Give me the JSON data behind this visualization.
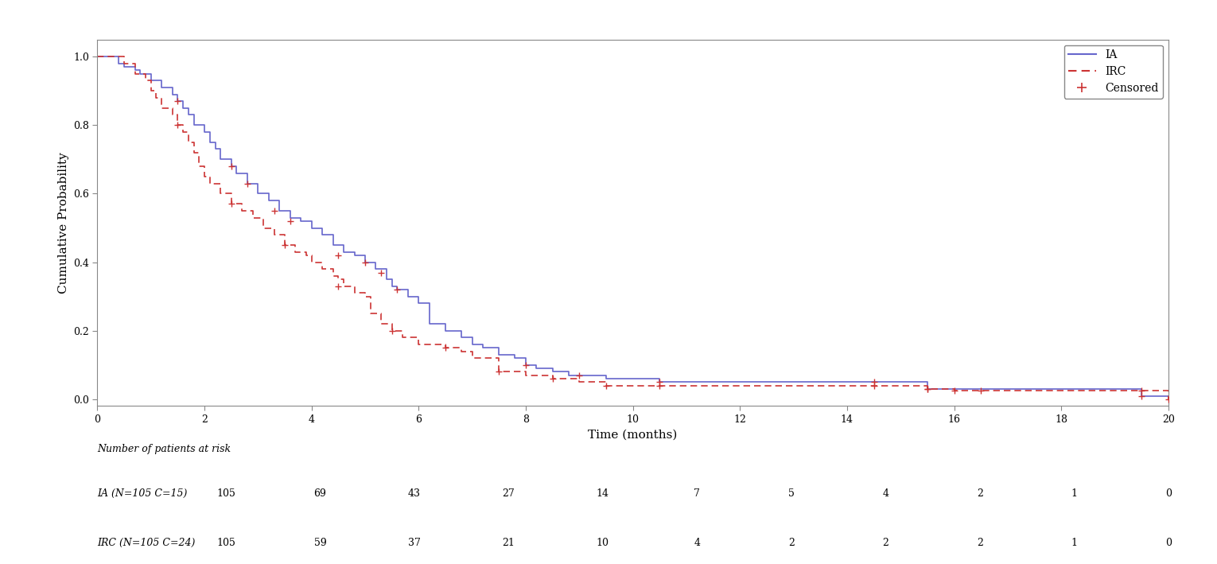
{
  "title": "",
  "xlabel": "Time (months)",
  "ylabel": "Cumulative Probability",
  "xlim": [
    0,
    20
  ],
  "ylim": [
    -0.02,
    1.05
  ],
  "xticks": [
    0,
    2,
    4,
    6,
    8,
    10,
    12,
    14,
    16,
    18,
    20
  ],
  "yticks": [
    0.0,
    0.2,
    0.4,
    0.6,
    0.8,
    1.0
  ],
  "ia_color": "#6666cc",
  "irc_color": "#cc3333",
  "background_color": "#ffffff",
  "risk_table_header": "Number of patients at risk",
  "ia_label": "IA (N=105 C=15)",
  "irc_label": "IRC (N=105 C=24)",
  "risk_times": [
    0,
    2,
    4,
    6,
    8,
    10,
    12,
    14,
    16,
    18,
    20
  ],
  "ia_risk": [
    105,
    69,
    43,
    27,
    14,
    7,
    5,
    4,
    2,
    1,
    0
  ],
  "irc_risk": [
    105,
    59,
    37,
    21,
    10,
    4,
    2,
    2,
    2,
    1,
    0
  ],
  "ia_step_x": [
    0,
    0.3,
    0.4,
    0.5,
    0.7,
    0.8,
    1.0,
    1.2,
    1.4,
    1.5,
    1.6,
    1.7,
    1.8,
    2.0,
    2.1,
    2.2,
    2.3,
    2.5,
    2.6,
    2.8,
    3.0,
    3.2,
    3.4,
    3.6,
    3.8,
    4.0,
    4.2,
    4.4,
    4.6,
    4.8,
    5.0,
    5.2,
    5.4,
    5.5,
    5.6,
    5.8,
    6.0,
    6.2,
    6.5,
    6.8,
    7.0,
    7.2,
    7.5,
    7.8,
    8.0,
    8.2,
    8.5,
    8.8,
    9.0,
    9.5,
    10.0,
    10.5,
    11.0,
    14.5,
    15.5,
    19.5,
    20.0
  ],
  "ia_step_y": [
    1.0,
    1.0,
    0.98,
    0.97,
    0.96,
    0.95,
    0.93,
    0.91,
    0.89,
    0.87,
    0.85,
    0.83,
    0.8,
    0.78,
    0.75,
    0.73,
    0.7,
    0.68,
    0.66,
    0.63,
    0.6,
    0.58,
    0.55,
    0.53,
    0.52,
    0.5,
    0.48,
    0.45,
    0.43,
    0.42,
    0.4,
    0.38,
    0.35,
    0.33,
    0.32,
    0.3,
    0.28,
    0.22,
    0.2,
    0.18,
    0.16,
    0.15,
    0.13,
    0.12,
    0.1,
    0.09,
    0.08,
    0.07,
    0.07,
    0.06,
    0.06,
    0.05,
    0.05,
    0.05,
    0.03,
    0.01,
    0.0
  ],
  "irc_step_x": [
    0,
    0.3,
    0.5,
    0.7,
    0.9,
    1.0,
    1.1,
    1.2,
    1.4,
    1.5,
    1.6,
    1.7,
    1.8,
    1.9,
    2.0,
    2.1,
    2.3,
    2.5,
    2.7,
    2.9,
    3.1,
    3.3,
    3.5,
    3.7,
    3.9,
    4.0,
    4.2,
    4.4,
    4.5,
    4.6,
    4.8,
    5.0,
    5.1,
    5.3,
    5.5,
    5.7,
    6.0,
    6.5,
    6.8,
    7.0,
    7.5,
    8.0,
    8.5,
    9.0,
    9.5,
    10.5,
    14.5,
    15.5,
    16.0,
    16.5,
    19.5,
    20.0
  ],
  "irc_step_y": [
    1.0,
    1.0,
    0.98,
    0.95,
    0.93,
    0.9,
    0.88,
    0.85,
    0.83,
    0.8,
    0.78,
    0.75,
    0.72,
    0.68,
    0.65,
    0.63,
    0.6,
    0.57,
    0.55,
    0.53,
    0.5,
    0.48,
    0.45,
    0.43,
    0.42,
    0.4,
    0.38,
    0.36,
    0.35,
    0.33,
    0.31,
    0.3,
    0.25,
    0.22,
    0.2,
    0.18,
    0.16,
    0.15,
    0.14,
    0.12,
    0.08,
    0.07,
    0.06,
    0.05,
    0.04,
    0.04,
    0.04,
    0.03,
    0.025,
    0.025,
    0.025,
    0.0
  ],
  "ia_censor_x": [
    1.5,
    2.5,
    2.8,
    3.3,
    3.6,
    4.5,
    5.0,
    5.3,
    5.6,
    8.0,
    9.0,
    10.5,
    14.5,
    15.5,
    19.5
  ],
  "ia_censor_y": [
    0.87,
    0.68,
    0.63,
    0.55,
    0.52,
    0.42,
    0.4,
    0.37,
    0.32,
    0.1,
    0.07,
    0.05,
    0.05,
    0.03,
    0.01
  ],
  "irc_censor_x": [
    1.5,
    2.5,
    3.5,
    4.5,
    5.5,
    6.5,
    7.5,
    8.5,
    9.5,
    10.5,
    14.5,
    15.5,
    16.0,
    16.5,
    19.5,
    20.0
  ],
  "irc_censor_y": [
    0.8,
    0.57,
    0.45,
    0.33,
    0.2,
    0.15,
    0.08,
    0.06,
    0.04,
    0.04,
    0.04,
    0.03,
    0.025,
    0.025,
    0.025,
    0.0
  ],
  "legend_ia_label": "IA",
  "legend_irc_label": "IRC",
  "legend_censored_label": "Censored"
}
